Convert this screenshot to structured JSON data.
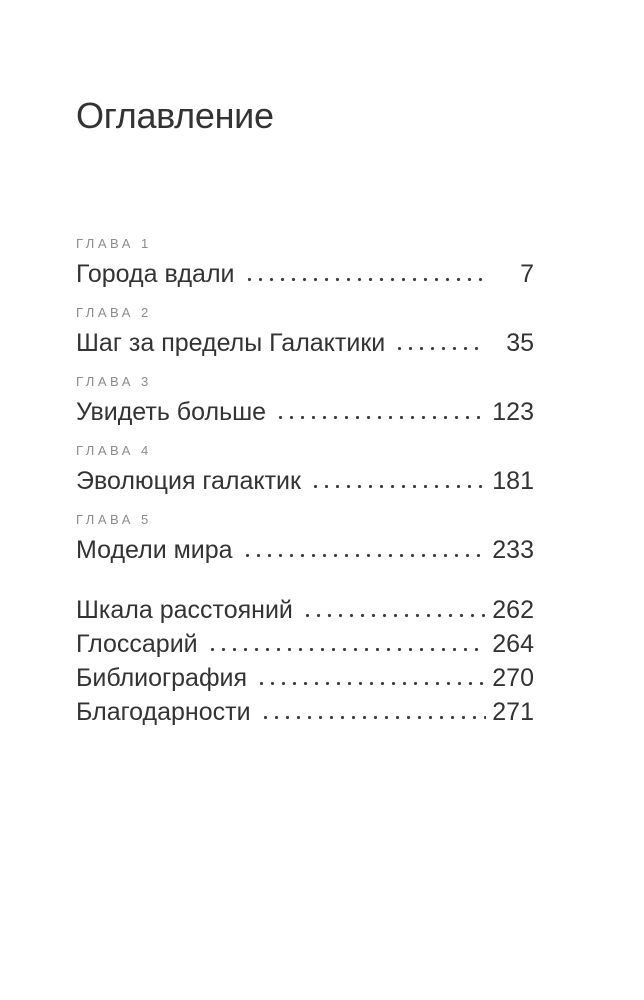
{
  "page": {
    "title": "Оглавление",
    "chapters": [
      {
        "label": "ГЛАВА 1",
        "title": "Города вдали",
        "page": "7"
      },
      {
        "label": "ГЛАВА 2",
        "title": "Шаг за пределы Галактики",
        "page": "35"
      },
      {
        "label": "ГЛАВА 3",
        "title": "Увидеть больше",
        "page": "123"
      },
      {
        "label": "ГЛАВА 4",
        "title": "Эволюция галактик",
        "page": "181"
      },
      {
        "label": "ГЛАВА 5",
        "title": "Модели мира",
        "page": "233"
      }
    ],
    "backmatter": [
      {
        "title": "Шкала расстояний",
        "page": "262"
      },
      {
        "title": "Глоссарий",
        "page": "264"
      },
      {
        "title": "Библиография",
        "page": "270"
      },
      {
        "title": "Благодарности",
        "page": "271"
      }
    ],
    "colors": {
      "background": "#ffffff",
      "text": "#333333",
      "chapter_label": "#8b8b8b",
      "dot_leader": "#3c3c3c"
    }
  }
}
